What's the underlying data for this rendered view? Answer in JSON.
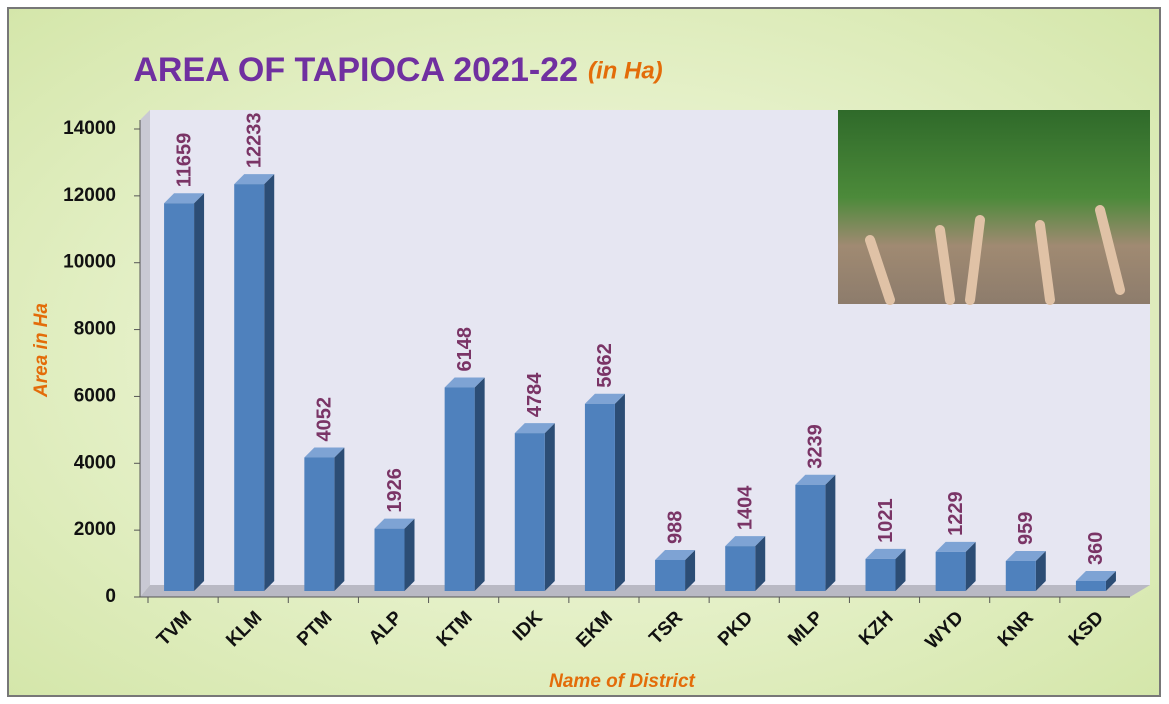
{
  "chart_data": {
    "type": "bar3d",
    "title": "AREA OF TAPIOCA 2021-22",
    "title_note": "(in Ha)",
    "y_label": "Area in Ha",
    "x_label": "Name of District",
    "categories": [
      "TVM",
      "KLM",
      "PTM",
      "ALP",
      "KTM",
      "IDK",
      "EKM",
      "TSR",
      "PKD",
      "MLP",
      "KZH",
      "WYD",
      "KNR",
      "KSD"
    ],
    "values": [
      11659,
      12233,
      4052,
      1926,
      6148,
      4784,
      5662,
      988,
      1404,
      3239,
      1021,
      1229,
      959,
      360
    ],
    "color": "#4f81bd",
    "ylim": [
      0,
      14000
    ],
    "yticks": [
      0,
      2000,
      4000,
      6000,
      8000,
      10000,
      12000,
      14000
    ],
    "grid": false
  }
}
